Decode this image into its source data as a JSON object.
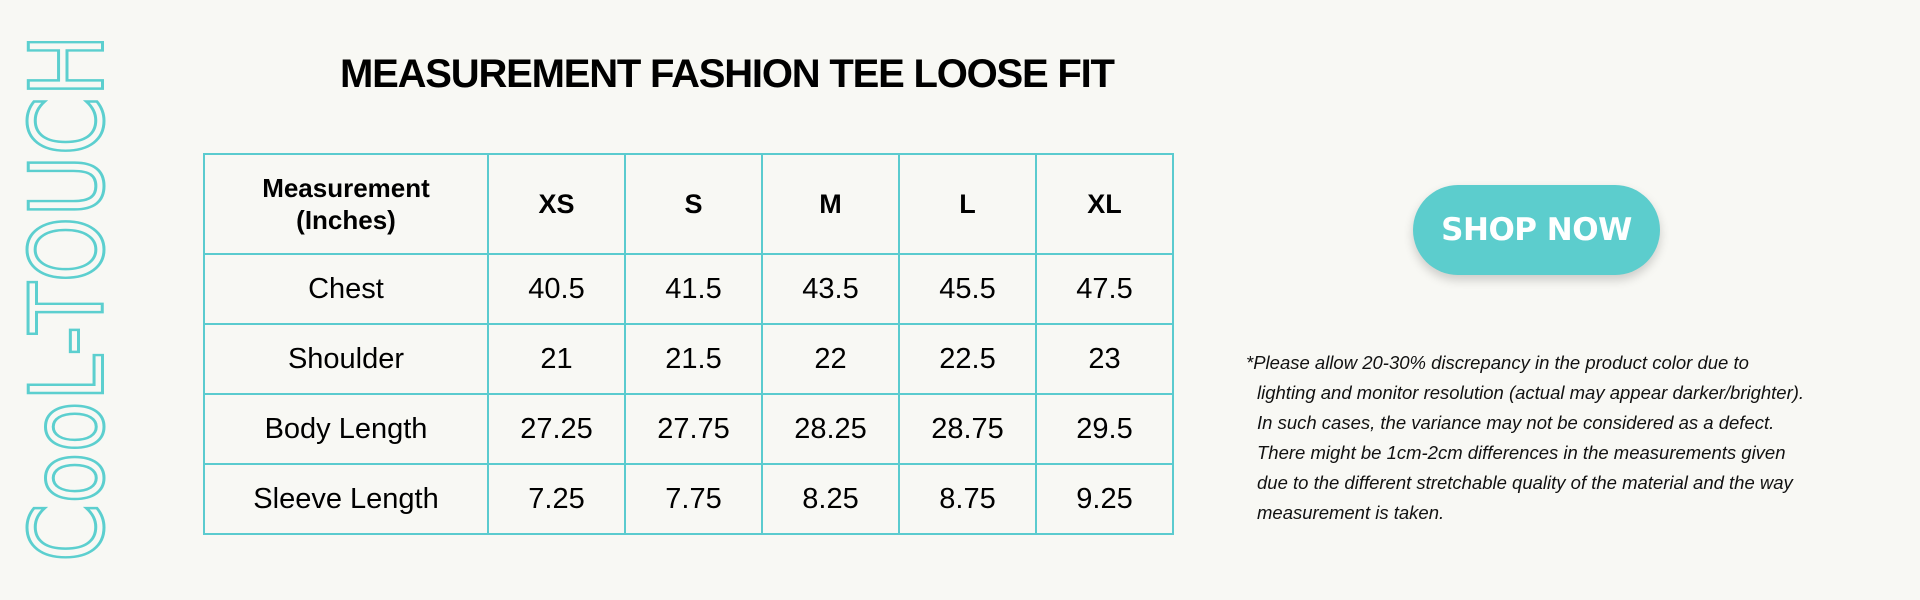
{
  "brand": {
    "text": "CooL-TOUCH",
    "color": "#5ccfcf"
  },
  "title": "MEASUREMENT FASHION TEE LOOSE FIT",
  "table": {
    "header_label_line1": "Measurement",
    "header_label_line2": "(Inches)",
    "sizes": [
      "XS",
      "S",
      "M",
      "L",
      "XL"
    ],
    "rows": [
      {
        "label": "Chest",
        "values": [
          "40.5",
          "41.5",
          "43.5",
          "45.5",
          "47.5"
        ]
      },
      {
        "label": "Shoulder",
        "values": [
          "21",
          "21.5",
          "22",
          "22.5",
          "23"
        ]
      },
      {
        "label": "Body Length",
        "values": [
          "27.25",
          "27.75",
          "28.25",
          "28.75",
          "29.5"
        ]
      },
      {
        "label": "Sleeve Length",
        "values": [
          "7.25",
          "7.75",
          "8.25",
          "8.75",
          "9.25"
        ]
      }
    ],
    "border_color": "#5bcbcf"
  },
  "shop_button": {
    "label": "SHOP NOW",
    "color": "#5ccdcd"
  },
  "disclaimer": {
    "lines": [
      "*Please allow 20-30% discrepancy in the product color due to",
      "lighting and monitor resolution (actual may appear darker/brighter).",
      "In such cases, the variance may not be considered as a defect.",
      "There might be 1cm-2cm differences in the measurements given",
      "due to the different stretchable quality of the material and the way",
      "measurement is taken."
    ]
  }
}
